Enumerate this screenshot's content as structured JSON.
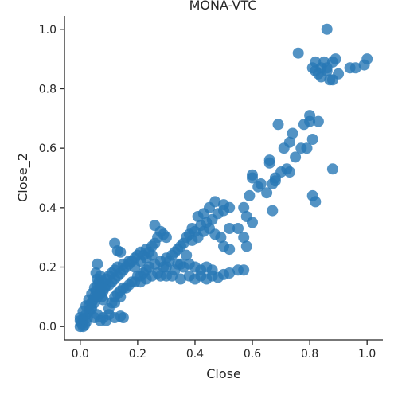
{
  "chart_data": {
    "type": "scatter",
    "title": "MONA-VTC",
    "xlabel": "Close",
    "ylabel": "Close_2",
    "xlim": [
      -0.055,
      1.055
    ],
    "ylim": [
      -0.045,
      1.045
    ],
    "xticks": [
      0.0,
      0.2,
      0.4,
      0.6,
      0.8,
      1.0
    ],
    "yticks": [
      0.0,
      0.2,
      0.4,
      0.6,
      0.8,
      1.0
    ],
    "xtick_labels": [
      "0.0",
      "0.2",
      "0.4",
      "0.6",
      "0.8",
      "1.0"
    ],
    "ytick_labels": [
      "0.0",
      "0.2",
      "0.4",
      "0.6",
      "0.8",
      "1.0"
    ],
    "color": "#2878b5",
    "grid": false,
    "points": [
      [
        0.0,
        0.0
      ],
      [
        0.005,
        0.01
      ],
      [
        0.01,
        0.0
      ],
      [
        0.0,
        0.02
      ],
      [
        0.015,
        0.005
      ],
      [
        0.02,
        0.015
      ],
      [
        0.01,
        0.025
      ],
      [
        0.025,
        0.03
      ],
      [
        0.02,
        0.04
      ],
      [
        0.03,
        0.05
      ],
      [
        0.035,
        0.06
      ],
      [
        0.04,
        0.08
      ],
      [
        0.03,
        0.07
      ],
      [
        0.045,
        0.09
      ],
      [
        0.05,
        0.1
      ],
      [
        0.04,
        0.11
      ],
      [
        0.055,
        0.12
      ],
      [
        0.05,
        0.13
      ],
      [
        0.06,
        0.14
      ],
      [
        0.065,
        0.15
      ],
      [
        0.06,
        0.16
      ],
      [
        0.07,
        0.17
      ],
      [
        0.055,
        0.18
      ],
      [
        0.06,
        0.21
      ],
      [
        0.07,
        0.11
      ],
      [
        0.08,
        0.12
      ],
      [
        0.075,
        0.1
      ],
      [
        0.085,
        0.13
      ],
      [
        0.09,
        0.14
      ],
      [
        0.08,
        0.09
      ],
      [
        0.1,
        0.14
      ],
      [
        0.11,
        0.15
      ],
      [
        0.12,
        0.16
      ],
      [
        0.13,
        0.17
      ],
      [
        0.14,
        0.18
      ],
      [
        0.15,
        0.19
      ],
      [
        0.16,
        0.2
      ],
      [
        0.17,
        0.21
      ],
      [
        0.18,
        0.22
      ],
      [
        0.19,
        0.23
      ],
      [
        0.2,
        0.24
      ],
      [
        0.21,
        0.25
      ],
      [
        0.22,
        0.24
      ],
      [
        0.23,
        0.26
      ],
      [
        0.24,
        0.25
      ],
      [
        0.25,
        0.27
      ],
      [
        0.26,
        0.28
      ],
      [
        0.27,
        0.3
      ],
      [
        0.28,
        0.32
      ],
      [
        0.29,
        0.31
      ],
      [
        0.26,
        0.34
      ],
      [
        0.3,
        0.3
      ],
      [
        0.12,
        0.28
      ],
      [
        0.14,
        0.25
      ],
      [
        0.13,
        0.255
      ],
      [
        0.1,
        0.04
      ],
      [
        0.12,
        0.03
      ],
      [
        0.14,
        0.035
      ],
      [
        0.15,
        0.03
      ],
      [
        0.09,
        0.02
      ],
      [
        0.08,
        0.03
      ],
      [
        0.07,
        0.02
      ],
      [
        0.05,
        0.03
      ],
      [
        0.06,
        0.04
      ],
      [
        0.12,
        0.08
      ],
      [
        0.14,
        0.1
      ],
      [
        0.16,
        0.13
      ],
      [
        0.18,
        0.15
      ],
      [
        0.2,
        0.17
      ],
      [
        0.22,
        0.18
      ],
      [
        0.24,
        0.2
      ],
      [
        0.26,
        0.21
      ],
      [
        0.28,
        0.22
      ],
      [
        0.3,
        0.23
      ],
      [
        0.32,
        0.24
      ],
      [
        0.34,
        0.26
      ],
      [
        0.36,
        0.28
      ],
      [
        0.38,
        0.31
      ],
      [
        0.4,
        0.32
      ],
      [
        0.42,
        0.34
      ],
      [
        0.44,
        0.35
      ],
      [
        0.46,
        0.36
      ],
      [
        0.48,
        0.38
      ],
      [
        0.5,
        0.39
      ],
      [
        0.52,
        0.4
      ],
      [
        0.45,
        0.4
      ],
      [
        0.47,
        0.42
      ],
      [
        0.5,
        0.41
      ],
      [
        0.43,
        0.38
      ],
      [
        0.41,
        0.37
      ],
      [
        0.39,
        0.33
      ],
      [
        0.37,
        0.3
      ],
      [
        0.35,
        0.27
      ],
      [
        0.33,
        0.25
      ],
      [
        0.31,
        0.22
      ],
      [
        0.29,
        0.2
      ],
      [
        0.27,
        0.18
      ],
      [
        0.25,
        0.17
      ],
      [
        0.23,
        0.16
      ],
      [
        0.21,
        0.15
      ],
      [
        0.28,
        0.17
      ],
      [
        0.3,
        0.17
      ],
      [
        0.32,
        0.17
      ],
      [
        0.35,
        0.16
      ],
      [
        0.38,
        0.17
      ],
      [
        0.4,
        0.16
      ],
      [
        0.42,
        0.17
      ],
      [
        0.44,
        0.16
      ],
      [
        0.46,
        0.17
      ],
      [
        0.48,
        0.165
      ],
      [
        0.5,
        0.175
      ],
      [
        0.52,
        0.18
      ],
      [
        0.55,
        0.19
      ],
      [
        0.57,
        0.19
      ],
      [
        0.46,
        0.19
      ],
      [
        0.44,
        0.2
      ],
      [
        0.42,
        0.19
      ],
      [
        0.4,
        0.2
      ],
      [
        0.38,
        0.21
      ],
      [
        0.36,
        0.2
      ],
      [
        0.34,
        0.21
      ],
      [
        0.3,
        0.2
      ],
      [
        0.5,
        0.27
      ],
      [
        0.52,
        0.26
      ],
      [
        0.55,
        0.33
      ],
      [
        0.57,
        0.3
      ],
      [
        0.58,
        0.37
      ],
      [
        0.6,
        0.35
      ],
      [
        0.57,
        0.4
      ],
      [
        0.58,
        0.27
      ],
      [
        0.52,
        0.33
      ],
      [
        0.49,
        0.3
      ],
      [
        0.47,
        0.31
      ],
      [
        0.45,
        0.33
      ],
      [
        0.43,
        0.32
      ],
      [
        0.41,
        0.3
      ],
      [
        0.39,
        0.29
      ],
      [
        0.37,
        0.24
      ],
      [
        0.35,
        0.21
      ],
      [
        0.33,
        0.19
      ],
      [
        0.59,
        0.44
      ],
      [
        0.6,
        0.5
      ],
      [
        0.6,
        0.51
      ],
      [
        0.62,
        0.47
      ],
      [
        0.63,
        0.48
      ],
      [
        0.65,
        0.45
      ],
      [
        0.67,
        0.48
      ],
      [
        0.68,
        0.49
      ],
      [
        0.68,
        0.5
      ],
      [
        0.66,
        0.55
      ],
      [
        0.66,
        0.56
      ],
      [
        0.7,
        0.52
      ],
      [
        0.72,
        0.53
      ],
      [
        0.73,
        0.52
      ],
      [
        0.75,
        0.57
      ],
      [
        0.77,
        0.6
      ],
      [
        0.73,
        0.62
      ],
      [
        0.71,
        0.6
      ],
      [
        0.74,
        0.65
      ],
      [
        0.69,
        0.68
      ],
      [
        0.78,
        0.68
      ],
      [
        0.8,
        0.69
      ],
      [
        0.8,
        0.71
      ],
      [
        0.83,
        0.69
      ],
      [
        0.81,
        0.63
      ],
      [
        0.79,
        0.6
      ],
      [
        0.67,
        0.39
      ],
      [
        0.81,
        0.44
      ],
      [
        0.82,
        0.42
      ],
      [
        0.88,
        0.53
      ],
      [
        0.76,
        0.92
      ],
      [
        0.86,
        1.0
      ],
      [
        0.81,
        0.87
      ],
      [
        0.82,
        0.89
      ],
      [
        0.84,
        0.87
      ],
      [
        0.85,
        0.89
      ],
      [
        0.83,
        0.85
      ],
      [
        0.84,
        0.84
      ],
      [
        0.86,
        0.86
      ],
      [
        0.87,
        0.83
      ],
      [
        0.88,
        0.83
      ],
      [
        0.88,
        0.89
      ],
      [
        0.89,
        0.9
      ],
      [
        0.9,
        0.85
      ],
      [
        0.94,
        0.87
      ],
      [
        0.96,
        0.87
      ],
      [
        0.99,
        0.88
      ],
      [
        1.0,
        0.9
      ],
      [
        0.86,
        0.87
      ],
      [
        0.82,
        0.86
      ],
      [
        0.0,
        0.03
      ],
      [
        0.01,
        0.05
      ],
      [
        0.02,
        0.07
      ],
      [
        0.03,
        0.09
      ],
      [
        0.04,
        0.06
      ],
      [
        0.05,
        0.08
      ],
      [
        0.06,
        0.1
      ],
      [
        0.07,
        0.13
      ],
      [
        0.08,
        0.15
      ],
      [
        0.09,
        0.16
      ],
      [
        0.1,
        0.17
      ],
      [
        0.11,
        0.18
      ],
      [
        0.12,
        0.19
      ],
      [
        0.13,
        0.2
      ],
      [
        0.15,
        0.21
      ],
      [
        0.17,
        0.22
      ],
      [
        0.19,
        0.2
      ],
      [
        0.21,
        0.22
      ],
      [
        0.23,
        0.23
      ],
      [
        0.25,
        0.24
      ],
      [
        0.1,
        0.06
      ],
      [
        0.11,
        0.08
      ],
      [
        0.12,
        0.1
      ],
      [
        0.13,
        0.11
      ],
      [
        0.14,
        0.12
      ],
      [
        0.15,
        0.13
      ],
      [
        0.17,
        0.14
      ],
      [
        0.19,
        0.15
      ],
      [
        0.21,
        0.17
      ],
      [
        0.23,
        0.19
      ]
    ]
  }
}
